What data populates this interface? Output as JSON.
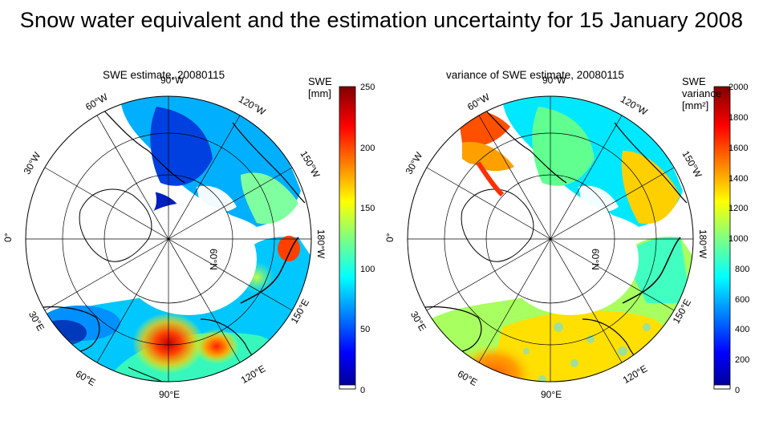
{
  "title": "Snow water equivalent and the estimation uncertainty for 15 January 2008",
  "panels": [
    {
      "title": "SWE estimate, 20080115",
      "colorbar_label": "SWE\n[mm]",
      "colorbar_ticks": [
        "0",
        "50",
        "100",
        "150",
        "200",
        "250"
      ],
      "colorbar_range": [
        0,
        250
      ]
    },
    {
      "title": "variance of SWE estimate, 20080115",
      "colorbar_label": "SWE\nvariance\n[mm²]",
      "colorbar_ticks": [
        "0",
        "200",
        "400",
        "600",
        "800",
        "1000",
        "1200",
        "1400",
        "1600",
        "1800",
        "2000"
      ],
      "colorbar_range": [
        0,
        2000
      ]
    }
  ],
  "map": {
    "projection": "polar stereographic, North Pole",
    "meridian_labels": [
      "0°",
      "30°W",
      "60°W",
      "90°W",
      "120°W",
      "150°W",
      "180°W",
      "150°E",
      "120°E",
      "90°E",
      "60°E",
      "30°E"
    ],
    "parallel_label": "60°N"
  },
  "colors": {
    "colormap": [
      "#00008f",
      "#0000ff",
      "#0080ff",
      "#00ffff",
      "#80ff80",
      "#ffff00",
      "#ff8000",
      "#ff0000",
      "#800000"
    ],
    "coastline": "#000000",
    "grid": "#000000"
  }
}
